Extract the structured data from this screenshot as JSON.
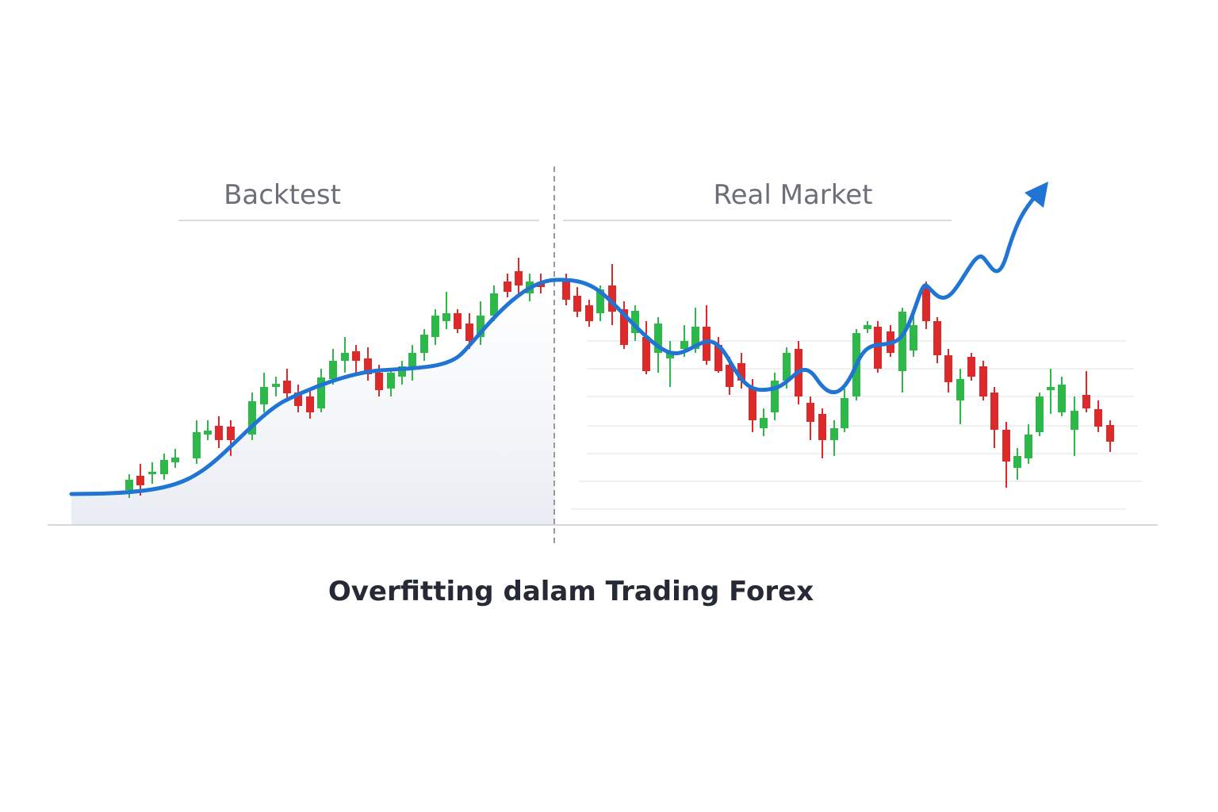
{
  "panels": {
    "left": "Backtest",
    "right": "Real Market"
  },
  "caption": "Overfitting dalam Trading Forex"
}
